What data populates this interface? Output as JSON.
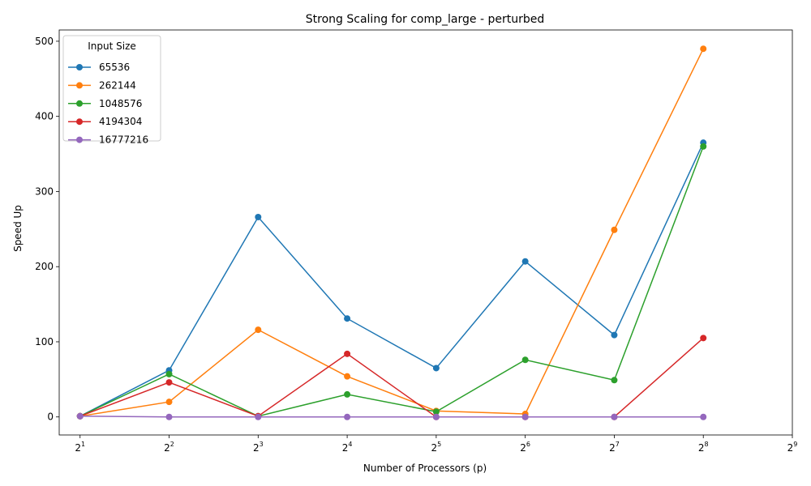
{
  "chart_data": {
    "type": "line",
    "title": "Strong Scaling for comp_large - perturbed",
    "xlabel": "Number of Processors (p)",
    "ylabel": "Speed Up",
    "x_scale": "log2",
    "x": [
      2,
      4,
      8,
      16,
      32,
      64,
      128,
      256
    ],
    "xlim": [
      1.7,
      512
    ],
    "ylim": [
      -24,
      515
    ],
    "x_ticks": [
      {
        "value": 2,
        "base": "2",
        "exp": "1"
      },
      {
        "value": 4,
        "base": "2",
        "exp": "2"
      },
      {
        "value": 8,
        "base": "2",
        "exp": "3"
      },
      {
        "value": 16,
        "base": "2",
        "exp": "4"
      },
      {
        "value": 32,
        "base": "2",
        "exp": "5"
      },
      {
        "value": 64,
        "base": "2",
        "exp": "6"
      },
      {
        "value": 128,
        "base": "2",
        "exp": "7"
      },
      {
        "value": 256,
        "base": "2",
        "exp": "8"
      },
      {
        "value": 512,
        "base": "2",
        "exp": "9"
      }
    ],
    "y_ticks": [
      0,
      100,
      200,
      300,
      400,
      500
    ],
    "grid": false,
    "legend": {
      "title": "Input Size",
      "position": "top-left"
    },
    "series": [
      {
        "name": "65536",
        "color": "#1f77b4",
        "values": [
          1,
          62,
          266,
          131,
          65,
          207,
          109,
          365
        ]
      },
      {
        "name": "262144",
        "color": "#ff7f0e",
        "values": [
          1,
          20,
          116,
          54,
          8,
          4,
          249,
          490
        ]
      },
      {
        "name": "1048576",
        "color": "#2ca02c",
        "values": [
          1,
          57,
          1,
          30,
          7,
          76,
          49,
          360
        ]
      },
      {
        "name": "4194304",
        "color": "#d62728",
        "values": [
          1,
          46,
          1,
          84,
          0,
          0,
          0,
          105
        ]
      },
      {
        "name": "16777216",
        "color": "#9467bd",
        "values": [
          1,
          0,
          0,
          0,
          0,
          0,
          0,
          0
        ]
      }
    ]
  }
}
